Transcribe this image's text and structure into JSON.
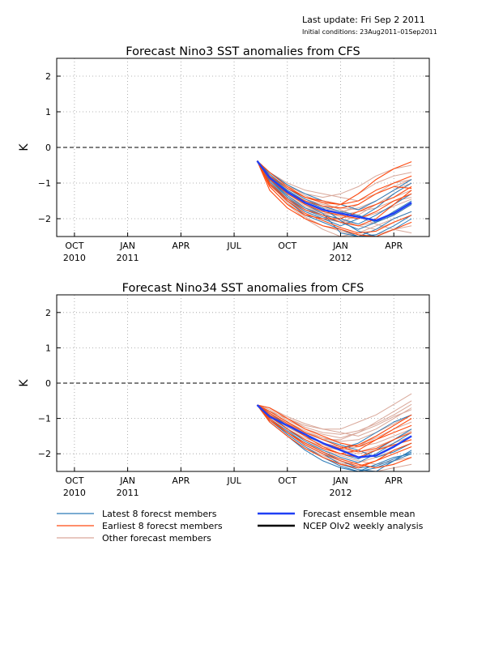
{
  "header": {
    "last_update": "Last update: Fri Sep 2 2011",
    "initial_condition": "Initial conditions: 23Aug2011–01Sep2011"
  },
  "colors": {
    "latest": "#2a7ab8",
    "earliest": "#ff4a10",
    "other": "#d9a89a",
    "mean": "#1f3ff5",
    "analysis": "#000000",
    "zero_line": "#000000",
    "grid": "#9a9a9a"
  },
  "legend": [
    {
      "key": "latest",
      "label": "Latest 8 forecst members"
    },
    {
      "key": "earliest",
      "label": "Earliest 8 forecst members"
    },
    {
      "key": "other",
      "label": "Other forecast members"
    },
    {
      "key": "mean",
      "label": "Forecast ensemble mean"
    },
    {
      "key": "analysis",
      "label": "NCEP OIv2 weekly analysis"
    }
  ],
  "x_ticks": [
    {
      "month": "OCT",
      "year": "2010",
      "t": 0
    },
    {
      "month": "JAN",
      "year": "2011",
      "t": 3
    },
    {
      "month": "APR",
      "year": "",
      "t": 6
    },
    {
      "month": "JUL",
      "year": "",
      "t": 9
    },
    {
      "month": "OCT",
      "year": "",
      "t": 12
    },
    {
      "month": "JAN",
      "year": "2012",
      "t": 15
    },
    {
      "month": "APR",
      "year": "",
      "t": 18
    }
  ],
  "chart_data": [
    {
      "type": "line",
      "title": "Forecast Nino3 SST anomalies from CFS",
      "ylabel": "K",
      "ylim": [
        -2.5,
        2.5
      ],
      "xlim": [
        -1,
        20
      ],
      "yticks": [
        2,
        1,
        0,
        -1,
        -2
      ],
      "grid": true,
      "x": [
        10.3,
        11,
        12,
        13,
        14,
        15,
        16,
        17,
        18,
        19
      ],
      "mean": [
        -0.38,
        -0.85,
        -1.25,
        -1.55,
        -1.75,
        -1.85,
        -1.95,
        -2.05,
        -1.85,
        -1.55
      ],
      "latest": [
        [
          -0.38,
          -1.0,
          -1.5,
          -1.9,
          -2.1,
          -2.3,
          -2.5,
          -2.3,
          -2.0,
          -1.8
        ],
        [
          -0.38,
          -0.9,
          -1.35,
          -1.7,
          -1.9,
          -2.0,
          -2.15,
          -1.9,
          -1.6,
          -1.3
        ],
        [
          -0.38,
          -0.8,
          -1.2,
          -1.5,
          -1.7,
          -2.05,
          -2.35,
          -2.5,
          -2.3,
          -2.0
        ],
        [
          -0.38,
          -0.95,
          -1.45,
          -1.8,
          -2.0,
          -2.2,
          -2.0,
          -1.7,
          -1.3,
          -1.0
        ],
        [
          -0.38,
          -0.7,
          -1.05,
          -1.3,
          -1.5,
          -1.6,
          -1.75,
          -1.5,
          -1.2,
          -0.9
        ],
        [
          -0.38,
          -0.85,
          -1.3,
          -1.6,
          -1.85,
          -2.4,
          -2.5,
          -2.45,
          -2.2,
          -1.9
        ],
        [
          -0.38,
          -0.75,
          -1.15,
          -1.45,
          -1.65,
          -1.8,
          -1.9,
          -2.1,
          -1.9,
          -1.6
        ],
        [
          -0.38,
          -0.9,
          -1.4,
          -1.75,
          -1.95,
          -2.1,
          -2.3,
          -2.1,
          -1.8,
          -1.5
        ]
      ],
      "earliest": [
        [
          -0.38,
          -0.7,
          -1.1,
          -1.4,
          -1.5,
          -1.6,
          -1.3,
          -0.9,
          -0.6,
          -0.4
        ],
        [
          -0.38,
          -1.1,
          -1.6,
          -1.9,
          -2.0,
          -2.0,
          -1.8,
          -1.6,
          -1.4,
          -1.1
        ],
        [
          -0.38,
          -0.9,
          -1.3,
          -1.6,
          -1.8,
          -1.9,
          -2.0,
          -1.8,
          -1.5,
          -1.3
        ],
        [
          -0.38,
          -1.2,
          -1.7,
          -2.0,
          -2.2,
          -2.3,
          -2.45,
          -2.5,
          -2.3,
          -2.1
        ],
        [
          -0.38,
          -0.8,
          -1.15,
          -1.4,
          -1.55,
          -1.6,
          -1.5,
          -1.2,
          -1.0,
          -0.8
        ],
        [
          -0.38,
          -1.0,
          -1.45,
          -1.75,
          -1.9,
          -2.1,
          -2.2,
          -2.0,
          -1.6,
          -1.2
        ],
        [
          -0.38,
          -0.85,
          -1.25,
          -1.5,
          -1.65,
          -1.7,
          -1.6,
          -1.3,
          -1.1,
          -1.15
        ],
        [
          -0.38,
          -1.05,
          -1.5,
          -1.85,
          -2.05,
          -2.25,
          -2.4,
          -2.35,
          -2.1,
          -1.9
        ]
      ],
      "other": [
        [
          -0.38,
          -0.8,
          -1.1,
          -1.3,
          -1.4,
          -1.3,
          -1.1,
          -0.8,
          -0.6,
          -0.5
        ],
        [
          -0.38,
          -0.9,
          -1.3,
          -1.6,
          -1.8,
          -1.6,
          -1.3,
          -1.0,
          -0.8,
          -0.7
        ],
        [
          -0.38,
          -1.0,
          -1.5,
          -1.8,
          -2.0,
          -2.1,
          -1.9,
          -1.6,
          -1.3,
          -1.0
        ],
        [
          -0.38,
          -0.7,
          -1.0,
          -1.2,
          -1.3,
          -1.4,
          -1.5,
          -1.3,
          -1.0,
          -0.9
        ],
        [
          -0.38,
          -1.1,
          -1.6,
          -2.0,
          -2.3,
          -2.5,
          -2.4,
          -2.2,
          -2.0,
          -1.8
        ],
        [
          -0.38,
          -0.85,
          -1.2,
          -1.5,
          -1.7,
          -1.8,
          -1.7,
          -1.5,
          -1.2,
          -1.0
        ],
        [
          -0.38,
          -0.95,
          -1.4,
          -1.7,
          -1.9,
          -2.0,
          -2.2,
          -2.3,
          -2.1,
          -1.9
        ],
        [
          -0.38,
          -0.75,
          -1.15,
          -1.45,
          -1.6,
          -1.7,
          -1.75,
          -1.6,
          -1.4,
          -1.2
        ],
        [
          -0.38,
          -1.05,
          -1.45,
          -1.7,
          -1.85,
          -1.9,
          -1.8,
          -1.7,
          -1.5,
          -1.4
        ],
        [
          -0.38,
          -0.9,
          -1.35,
          -1.65,
          -1.85,
          -2.05,
          -2.2,
          -2.1,
          -1.9,
          -1.6
        ],
        [
          -0.38,
          -0.8,
          -1.25,
          -1.55,
          -1.75,
          -1.85,
          -1.6,
          -1.3,
          -1.1,
          -0.9
        ],
        [
          -0.38,
          -1.0,
          -1.55,
          -1.95,
          -2.2,
          -2.35,
          -2.5,
          -2.45,
          -2.3,
          -2.2
        ],
        [
          -0.38,
          -0.85,
          -1.3,
          -1.6,
          -1.8,
          -1.95,
          -2.0,
          -1.85,
          -1.65,
          -1.45
        ],
        [
          -0.38,
          -0.7,
          -1.05,
          -1.35,
          -1.55,
          -1.75,
          -1.95,
          -2.15,
          -2.3,
          -2.4
        ]
      ]
    },
    {
      "type": "line",
      "title": "Forecast Nino34 SST anomalies from CFS",
      "ylabel": "K",
      "ylim": [
        -2.5,
        2.5
      ],
      "xlim": [
        -1,
        20
      ],
      "yticks": [
        2,
        1,
        0,
        -1,
        -2
      ],
      "grid": true,
      "x": [
        10.3,
        11,
        12,
        13,
        14,
        15,
        16,
        17,
        18,
        19
      ],
      "mean": [
        -0.62,
        -0.95,
        -1.2,
        -1.45,
        -1.7,
        -1.9,
        -2.1,
        -2.05,
        -1.8,
        -1.5
      ],
      "latest": [
        [
          -0.62,
          -1.1,
          -1.5,
          -1.9,
          -2.2,
          -2.4,
          -2.5,
          -2.3,
          -2.1,
          -2.0
        ],
        [
          -0.62,
          -0.9,
          -1.3,
          -1.6,
          -1.85,
          -2.0,
          -2.15,
          -1.9,
          -1.6,
          -1.3
        ],
        [
          -0.62,
          -1.0,
          -1.4,
          -1.75,
          -2.0,
          -2.3,
          -2.45,
          -2.5,
          -2.2,
          -2.0
        ],
        [
          -0.62,
          -0.85,
          -1.2,
          -1.5,
          -1.7,
          -1.85,
          -1.7,
          -1.4,
          -1.1,
          -0.9
        ],
        [
          -0.62,
          -1.05,
          -1.45,
          -1.8,
          -2.1,
          -2.35,
          -2.5,
          -2.4,
          -2.2,
          -1.9
        ],
        [
          -0.62,
          -0.95,
          -1.3,
          -1.65,
          -1.9,
          -2.1,
          -2.25,
          -2.0,
          -1.7,
          -1.4
        ],
        [
          -0.62,
          -0.8,
          -1.1,
          -1.4,
          -1.6,
          -1.75,
          -1.9,
          -2.1,
          -1.95,
          -1.7
        ],
        [
          -0.62,
          -1.0,
          -1.35,
          -1.7,
          -1.95,
          -2.2,
          -2.4,
          -2.35,
          -2.15,
          -1.95
        ]
      ],
      "earliest": [
        [
          -0.62,
          -0.9,
          -1.2,
          -1.5,
          -1.8,
          -2.0,
          -1.9,
          -1.6,
          -1.3,
          -1.0
        ],
        [
          -0.62,
          -1.0,
          -1.4,
          -1.7,
          -1.95,
          -2.15,
          -2.3,
          -2.4,
          -2.3,
          -2.1
        ],
        [
          -0.62,
          -0.7,
          -1.0,
          -1.3,
          -1.5,
          -1.7,
          -1.8,
          -1.6,
          -1.4,
          -1.2
        ],
        [
          -0.62,
          -1.1,
          -1.5,
          -1.85,
          -2.1,
          -2.3,
          -2.4,
          -2.2,
          -1.9,
          -1.7
        ],
        [
          -0.62,
          -0.85,
          -1.15,
          -1.45,
          -1.7,
          -1.85,
          -1.75,
          -1.5,
          -1.2,
          -0.9
        ],
        [
          -0.62,
          -0.95,
          -1.3,
          -1.6,
          -1.85,
          -2.0,
          -2.1,
          -1.9,
          -1.75,
          -1.6
        ],
        [
          -0.62,
          -1.05,
          -1.4,
          -1.75,
          -2.0,
          -2.2,
          -2.35,
          -2.2,
          -2.0,
          -1.8
        ],
        [
          -0.62,
          -0.8,
          -1.1,
          -1.4,
          -1.6,
          -1.8,
          -1.95,
          -1.85,
          -1.6,
          -1.4
        ]
      ],
      "other": [
        [
          -0.62,
          -0.8,
          -1.0,
          -1.2,
          -1.3,
          -1.3,
          -1.1,
          -0.9,
          -0.6,
          -0.3
        ],
        [
          -0.62,
          -0.9,
          -1.2,
          -1.4,
          -1.6,
          -1.6,
          -1.4,
          -1.1,
          -0.8,
          -0.5
        ],
        [
          -0.62,
          -1.0,
          -1.35,
          -1.6,
          -1.8,
          -1.9,
          -1.8,
          -1.5,
          -1.2,
          -0.9
        ],
        [
          -0.62,
          -0.7,
          -0.95,
          -1.15,
          -1.3,
          -1.4,
          -1.5,
          -1.3,
          -1.0,
          -0.7
        ],
        [
          -0.62,
          -1.1,
          -1.5,
          -1.85,
          -2.1,
          -2.3,
          -2.25,
          -2.1,
          -1.9,
          -1.7
        ],
        [
          -0.62,
          -0.85,
          -1.15,
          -1.4,
          -1.55,
          -1.65,
          -1.6,
          -1.4,
          -1.15,
          -0.9
        ],
        [
          -0.62,
          -0.95,
          -1.3,
          -1.55,
          -1.75,
          -1.9,
          -2.0,
          -1.9,
          -1.7,
          -1.5
        ],
        [
          -0.62,
          -0.75,
          -1.05,
          -1.3,
          -1.45,
          -1.55,
          -1.4,
          -1.2,
          -0.95,
          -0.75
        ],
        [
          -0.62,
          -1.05,
          -1.4,
          -1.7,
          -1.9,
          -2.05,
          -2.2,
          -2.3,
          -2.2,
          -2.1
        ],
        [
          -0.62,
          -0.9,
          -1.25,
          -1.5,
          -1.7,
          -1.8,
          -1.75,
          -1.55,
          -1.3,
          -1.1
        ],
        [
          -0.62,
          -0.8,
          -1.1,
          -1.35,
          -1.55,
          -1.7,
          -1.8,
          -1.7,
          -1.5,
          -1.3
        ],
        [
          -0.62,
          -1.0,
          -1.45,
          -1.8,
          -2.05,
          -2.25,
          -2.45,
          -2.5,
          -2.4,
          -2.3
        ],
        [
          -0.62,
          -0.85,
          -1.2,
          -1.5,
          -1.7,
          -1.85,
          -1.95,
          -1.8,
          -1.6,
          -1.35
        ],
        [
          -0.62,
          -0.7,
          -1.0,
          -1.25,
          -1.4,
          -1.45,
          -1.35,
          -1.15,
          -0.9,
          -0.6
        ]
      ]
    }
  ]
}
